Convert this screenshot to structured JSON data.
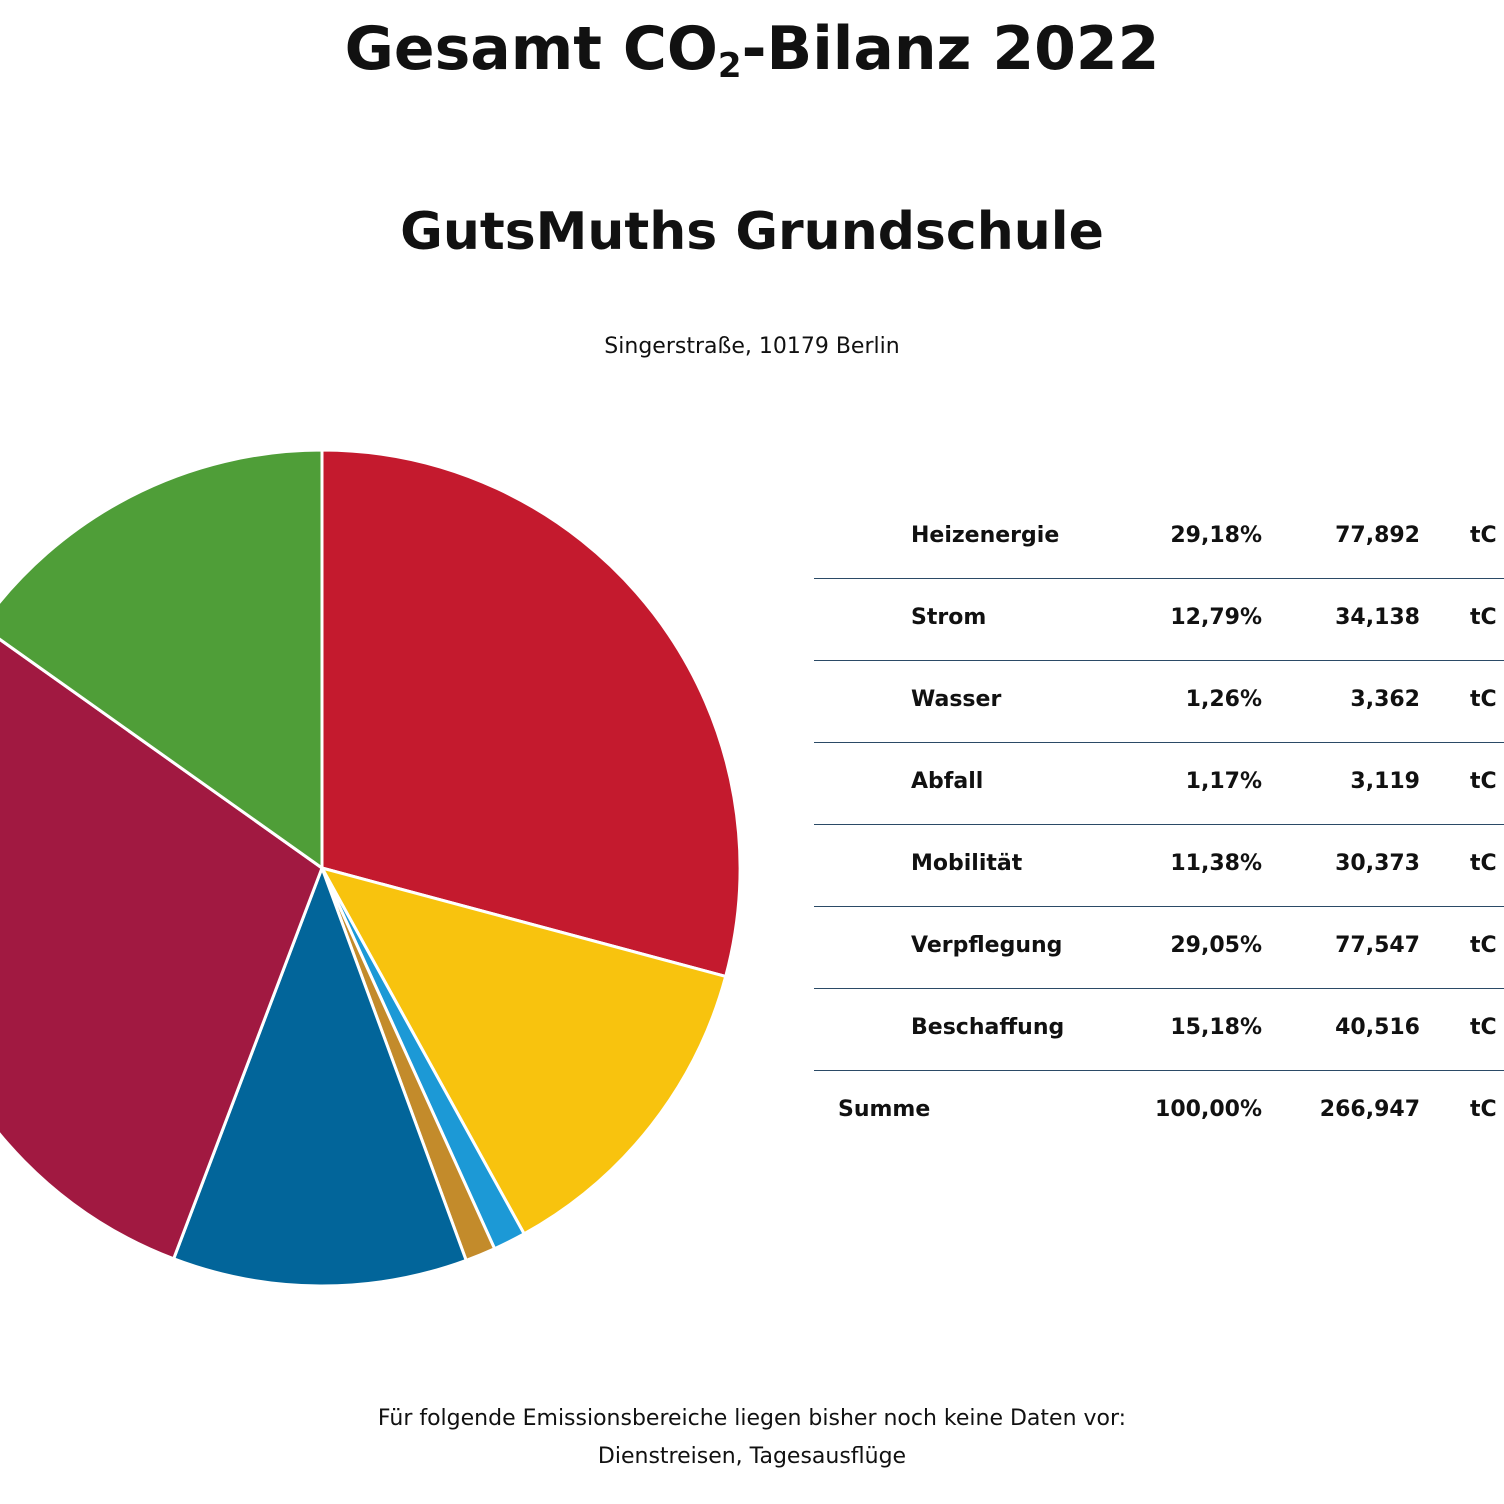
{
  "header": {
    "title_prefix": "Gesamt CO",
    "title_sub": "2",
    "title_suffix": "-Bilanz 2022",
    "school": "GutsMuths Grundschule",
    "address": "Singerstraße, 10179 Berlin"
  },
  "chart_data": {
    "type": "pie",
    "categories": [
      "Heizenergie",
      "Strom",
      "Wasser",
      "Abfall",
      "Mobilität",
      "Verpflegung",
      "Beschaffung"
    ],
    "values": [
      29.18,
      12.79,
      1.26,
      1.17,
      11.38,
      29.05,
      15.18
    ],
    "colors": [
      "#c41a2e",
      "#f8c30e",
      "#1c99d6",
      "#c38b2b",
      "#02659a",
      "#a11941",
      "#4f9e38"
    ],
    "start_angle_deg": 0,
    "direction": "clockwise"
  },
  "table": {
    "rows": [
      {
        "name": "Heizenergie",
        "pct": "29,18%",
        "value": "77,892",
        "unit": "tC"
      },
      {
        "name": "Strom",
        "pct": "12,79%",
        "value": "34,138",
        "unit": "tC"
      },
      {
        "name": "Wasser",
        "pct": "1,26%",
        "value": "3,362",
        "unit": "tC"
      },
      {
        "name": "Abfall",
        "pct": "1,17%",
        "value": "3,119",
        "unit": "tC"
      },
      {
        "name": "Mobilität",
        "pct": "11,38%",
        "value": "30,373",
        "unit": "tC"
      },
      {
        "name": "Verpflegung",
        "pct": "29,05%",
        "value": "77,547",
        "unit": "tC"
      },
      {
        "name": "Beschaffung",
        "pct": "15,18%",
        "value": "40,516",
        "unit": "tC"
      }
    ],
    "sum": {
      "name": "Summe",
      "pct": "100,00%",
      "value": "266,947",
      "unit": "tC"
    }
  },
  "footer": {
    "line1": "Für folgende Emissionsbereiche liegen bisher noch keine Daten vor:",
    "line2": "Dienstreisen, Tagesausflüge"
  }
}
